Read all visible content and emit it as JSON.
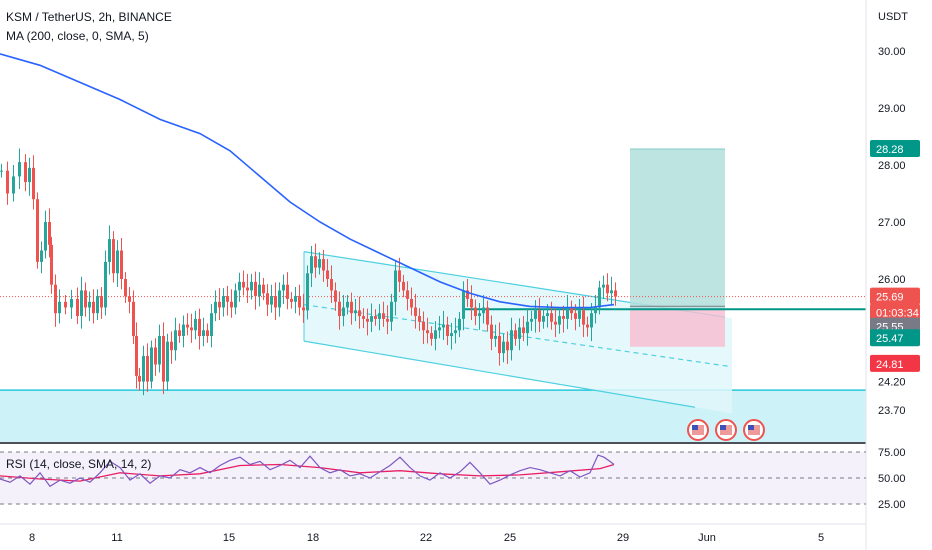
{
  "header": {
    "symbol_line": "KSM / TetherUS, 2h, BINANCE",
    "ma_line": "MA (200, close, 0, SMA, 5)"
  },
  "rsi": {
    "legend": "RSI (14, close, SMA, 14, 2)",
    "levels": [
      "75.00",
      "50.00",
      "25.00"
    ]
  },
  "colors": {
    "up": "#26a69a",
    "down": "#ef5350",
    "ma": "#2962ff",
    "channel": "#4dd0e1",
    "rsi_line": "#7e57c2",
    "rsi_ma": "#e91e63",
    "target": "#009688",
    "stop": "#f23645"
  },
  "chart_data": {
    "type": "candlestick",
    "y_axis_title": "USDT",
    "ylim": [
      23.5,
      30.5
    ],
    "y_ticks": [
      "30.00",
      "29.00",
      "28.00",
      "27.00",
      "26.00",
      "24.20",
      "23.70"
    ],
    "x_ticks": [
      "8",
      "11",
      "15",
      "18",
      "22",
      "25",
      "29",
      "Jun",
      "5"
    ],
    "price_labels": [
      {
        "text": "28.28",
        "value": 28.28,
        "color": "#009688"
      },
      {
        "text": "25.69",
        "value": 25.69,
        "color": "#ef5350"
      },
      {
        "text": "01:03:34",
        "value": 25.69,
        "color": "#ef5350"
      },
      {
        "text": "25.55",
        "value": 25.55,
        "color": "#787b86"
      },
      {
        "text": "25.47",
        "value": 25.47,
        "color": "#009688"
      },
      {
        "text": "24.81",
        "value": 24.81,
        "color": "#f23645"
      }
    ],
    "last_price": 25.69,
    "support_zone": [
      23.5,
      24.05
    ],
    "entry": 25.47,
    "target": 28.28,
    "stop": 24.81,
    "close_path": [
      [
        0,
        27.9
      ],
      [
        6,
        27.5
      ],
      [
        12,
        27.8
      ],
      [
        18,
        28.05
      ],
      [
        24,
        27.7
      ],
      [
        28,
        27.95
      ],
      [
        32,
        27.4
      ],
      [
        36,
        26.3
      ],
      [
        40,
        26.5
      ],
      [
        44,
        27.0
      ],
      [
        48,
        26.6
      ],
      [
        50,
        25.9
      ],
      [
        54,
        25.4
      ],
      [
        58,
        25.6
      ],
      [
        64,
        25.5
      ],
      [
        70,
        25.65
      ],
      [
        76,
        25.35
      ],
      [
        80,
        25.8
      ],
      [
        84,
        25.5
      ],
      [
        88,
        25.6
      ],
      [
        92,
        25.4
      ],
      [
        96,
        25.7
      ],
      [
        100,
        25.5
      ],
      [
        104,
        26.3
      ],
      [
        108,
        26.7
      ],
      [
        112,
        26.1
      ],
      [
        116,
        26.5
      ],
      [
        120,
        26.0
      ],
      [
        124,
        25.7
      ],
      [
        128,
        25.6
      ],
      [
        132,
        25.0
      ],
      [
        135,
        24.3
      ],
      [
        138,
        24.2
      ],
      [
        142,
        24.65
      ],
      [
        146,
        24.2
      ],
      [
        150,
        24.8
      ],
      [
        154,
        24.5
      ],
      [
        158,
        25.0
      ],
      [
        162,
        24.2
      ],
      [
        166,
        24.9
      ],
      [
        170,
        24.75
      ],
      [
        174,
        25.1
      ],
      [
        178,
        25.0
      ],
      [
        182,
        25.2
      ],
      [
        186,
        25.15
      ],
      [
        190,
        25.1
      ],
      [
        194,
        25.3
      ],
      [
        198,
        25.0
      ],
      [
        202,
        25.1
      ],
      [
        206,
        25.0
      ],
      [
        210,
        25.4
      ],
      [
        214,
        25.6
      ],
      [
        218,
        25.5
      ],
      [
        222,
        25.7
      ],
      [
        226,
        25.6
      ],
      [
        230,
        25.5
      ],
      [
        234,
        25.8
      ],
      [
        238,
        25.95
      ],
      [
        242,
        25.85
      ],
      [
        246,
        25.8
      ],
      [
        250,
        25.95
      ],
      [
        254,
        25.7
      ],
      [
        258,
        25.9
      ],
      [
        262,
        25.75
      ],
      [
        266,
        25.55
      ],
      [
        270,
        25.7
      ],
      [
        274,
        25.5
      ],
      [
        278,
        25.8
      ],
      [
        282,
        25.9
      ],
      [
        286,
        25.65
      ],
      [
        290,
        25.6
      ],
      [
        294,
        25.7
      ],
      [
        298,
        25.5
      ],
      [
        302,
        25.45
      ],
      [
        306,
        26.1
      ],
      [
        310,
        26.4
      ],
      [
        314,
        26.2
      ],
      [
        318,
        26.35
      ],
      [
        322,
        26.15
      ],
      [
        326,
        26.0
      ],
      [
        330,
        25.8
      ],
      [
        334,
        25.6
      ],
      [
        338,
        25.35
      ],
      [
        342,
        25.5
      ],
      [
        346,
        25.6
      ],
      [
        350,
        25.4
      ],
      [
        354,
        25.45
      ],
      [
        358,
        25.35
      ],
      [
        362,
        25.3
      ],
      [
        366,
        25.25
      ],
      [
        370,
        25.35
      ],
      [
        374,
        25.3
      ],
      [
        378,
        25.4
      ],
      [
        382,
        25.3
      ],
      [
        386,
        25.25
      ],
      [
        390,
        25.6
      ],
      [
        394,
        26.15
      ],
      [
        398,
        25.95
      ],
      [
        402,
        25.8
      ],
      [
        406,
        25.65
      ],
      [
        410,
        25.5
      ],
      [
        414,
        25.35
      ],
      [
        418,
        25.25
      ],
      [
        422,
        25.1
      ],
      [
        426,
        25.05
      ],
      [
        430,
        24.95
      ],
      [
        434,
        25.1
      ],
      [
        438,
        25.15
      ],
      [
        442,
        25.2
      ],
      [
        446,
        25.0
      ],
      [
        450,
        25.05
      ],
      [
        454,
        25.1
      ],
      [
        458,
        25.3
      ],
      [
        462,
        25.8
      ],
      [
        466,
        25.65
      ],
      [
        470,
        25.5
      ],
      [
        474,
        25.35
      ],
      [
        478,
        25.4
      ],
      [
        482,
        25.5
      ],
      [
        486,
        25.2
      ],
      [
        490,
        24.95
      ],
      [
        494,
        25.0
      ],
      [
        498,
        24.7
      ],
      [
        502,
        24.9
      ],
      [
        506,
        24.75
      ],
      [
        510,
        25.1
      ],
      [
        514,
        24.95
      ],
      [
        518,
        25.15
      ],
      [
        522,
        25.05
      ],
      [
        526,
        25.25
      ],
      [
        530,
        25.3
      ],
      [
        534,
        25.45
      ],
      [
        538,
        25.25
      ],
      [
        542,
        25.35
      ],
      [
        546,
        25.4
      ],
      [
        550,
        25.25
      ],
      [
        554,
        25.2
      ],
      [
        558,
        25.35
      ],
      [
        562,
        25.3
      ],
      [
        566,
        25.5
      ],
      [
        570,
        25.4
      ],
      [
        574,
        25.3
      ],
      [
        578,
        25.45
      ],
      [
        582,
        25.2
      ],
      [
        586,
        25.15
      ],
      [
        590,
        25.4
      ],
      [
        594,
        25.5
      ],
      [
        598,
        25.85
      ],
      [
        602,
        25.9
      ],
      [
        606,
        25.75
      ],
      [
        610,
        25.8
      ],
      [
        614,
        25.69
      ]
    ],
    "ma200": [
      [
        0,
        29.95
      ],
      [
        40,
        29.75
      ],
      [
        80,
        29.45
      ],
      [
        120,
        29.15
      ],
      [
        160,
        28.8
      ],
      [
        200,
        28.55
      ],
      [
        230,
        28.25
      ],
      [
        260,
        27.8
      ],
      [
        290,
        27.35
      ],
      [
        320,
        27.0
      ],
      [
        350,
        26.7
      ],
      [
        380,
        26.45
      ],
      [
        410,
        26.2
      ],
      [
        440,
        25.95
      ],
      [
        470,
        25.75
      ],
      [
        500,
        25.6
      ],
      [
        530,
        25.52
      ],
      [
        560,
        25.5
      ],
      [
        590,
        25.5
      ],
      [
        614,
        25.55
      ]
    ],
    "channel": {
      "upper": [
        [
          304,
          26.48
        ],
        [
          725,
          25.33
        ]
      ],
      "mid": [
        [
          304,
          25.55
        ],
        [
          728,
          24.47
        ]
      ],
      "lower": [
        [
          304,
          24.91
        ],
        [
          695,
          23.75
        ]
      ],
      "box_right": 732
    },
    "rsi_path": [
      [
        0,
        49
      ],
      [
        10,
        46
      ],
      [
        20,
        52
      ],
      [
        30,
        44
      ],
      [
        40,
        55
      ],
      [
        50,
        42
      ],
      [
        60,
        48
      ],
      [
        70,
        45
      ],
      [
        80,
        50
      ],
      [
        90,
        46
      ],
      [
        100,
        55
      ],
      [
        110,
        66
      ],
      [
        120,
        60
      ],
      [
        130,
        48
      ],
      [
        140,
        54
      ],
      [
        150,
        45
      ],
      [
        160,
        52
      ],
      [
        170,
        50
      ],
      [
        180,
        58
      ],
      [
        190,
        55
      ],
      [
        200,
        60
      ],
      [
        210,
        55
      ],
      [
        220,
        62
      ],
      [
        230,
        67
      ],
      [
        240,
        70
      ],
      [
        250,
        63
      ],
      [
        260,
        66
      ],
      [
        270,
        58
      ],
      [
        280,
        62
      ],
      [
        290,
        67
      ],
      [
        300,
        60
      ],
      [
        310,
        71
      ],
      [
        320,
        60
      ],
      [
        330,
        55
      ],
      [
        340,
        58
      ],
      [
        350,
        52
      ],
      [
        360,
        54
      ],
      [
        370,
        50
      ],
      [
        380,
        56
      ],
      [
        390,
        62
      ],
      [
        400,
        70
      ],
      [
        410,
        60
      ],
      [
        420,
        52
      ],
      [
        430,
        48
      ],
      [
        440,
        55
      ],
      [
        450,
        50
      ],
      [
        460,
        56
      ],
      [
        470,
        65
      ],
      [
        480,
        55
      ],
      [
        490,
        44
      ],
      [
        500,
        48
      ],
      [
        510,
        53
      ],
      [
        520,
        57
      ],
      [
        530,
        60
      ],
      [
        540,
        58
      ],
      [
        550,
        55
      ],
      [
        560,
        52
      ],
      [
        570,
        57
      ],
      [
        580,
        51
      ],
      [
        590,
        55
      ],
      [
        598,
        72
      ],
      [
        604,
        70
      ],
      [
        610,
        66
      ],
      [
        614,
        63
      ]
    ],
    "rsi_ma_path": [
      [
        0,
        52
      ],
      [
        40,
        49
      ],
      [
        80,
        47
      ],
      [
        120,
        55
      ],
      [
        160,
        52
      ],
      [
        200,
        54
      ],
      [
        240,
        62
      ],
      [
        280,
        63
      ],
      [
        320,
        60
      ],
      [
        360,
        55
      ],
      [
        400,
        57
      ],
      [
        440,
        54
      ],
      [
        480,
        52
      ],
      [
        520,
        53
      ],
      [
        560,
        56
      ],
      [
        600,
        59
      ],
      [
        614,
        63
      ]
    ],
    "flags": 3
  }
}
